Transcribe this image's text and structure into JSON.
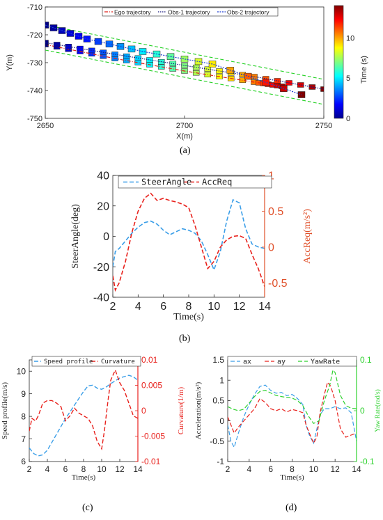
{
  "panels": {
    "a": {
      "label": "(a)"
    },
    "b": {
      "label": "(b)"
    },
    "c": {
      "label": "(c)"
    },
    "d": {
      "label": "(d)"
    }
  },
  "chart_data": [
    {
      "id": "a",
      "type": "scatter",
      "xlabel": "X(m)",
      "ylabel": "Y(m)",
      "xlim": [
        2650,
        2750
      ],
      "ylim": [
        -750,
        -710
      ],
      "xticks": [
        2650,
        2700,
        2750
      ],
      "yticks": [
        -710,
        -720,
        -730,
        -740,
        -750
      ],
      "colorbar": {
        "label": "Time (s)",
        "range": [
          0,
          14
        ],
        "ticks": [
          0,
          5,
          10
        ]
      },
      "legend": [
        "Ego trajectory",
        "Obs-1 trajectory",
        "Obs-2 trajectory"
      ],
      "lane_boundaries": [
        {
          "x": [
            2650,
            2750
          ],
          "y": [
            -716.5,
            -736
          ]
        },
        {
          "x": [
            2650,
            2750
          ],
          "y": [
            -725.5,
            -745
          ]
        }
      ],
      "series": [
        {
          "name": "Ego trajectory",
          "color": "#e0201b",
          "x": [
            2650,
            2675,
            2700,
            2725,
            2735
          ],
          "y": [
            -723.5,
            -728.5,
            -733.0,
            -737.0,
            -738.5
          ],
          "t": [
            0,
            3.5,
            7.0,
            10.5,
            13.5
          ]
        },
        {
          "name": "Obs-1 trajectory",
          "color": "#1a1a80",
          "x": [
            2650,
            2675,
            2700,
            2725,
            2750
          ],
          "y": [
            -722.8,
            -727.0,
            -731.0,
            -735.0,
            -739.5
          ],
          "t": [
            0,
            3.5,
            7,
            10.5,
            14
          ]
        },
        {
          "name": "Obs-2 trajectory",
          "color": "#1f3fd0",
          "x": [
            2650,
            2665,
            2685,
            2710,
            2742
          ],
          "y": [
            -716.5,
            -721.5,
            -726.0,
            -730.5,
            -741.5
          ],
          "t": [
            0,
            2,
            5,
            9,
            14
          ]
        }
      ]
    },
    {
      "id": "b",
      "type": "line",
      "xlabel": "Time(s)",
      "ylabel": "SteerAngle(deg)",
      "y2label": "AccReq(m/s²)",
      "xlim": [
        2,
        14
      ],
      "ylim": [
        -40,
        40
      ],
      "y2lim": [
        -0.7,
        1
      ],
      "xticks": [
        2,
        4,
        6,
        8,
        10,
        12,
        14
      ],
      "yticks": [
        40,
        20,
        0,
        -20,
        -40
      ],
      "y2ticks": [
        1,
        0.5,
        0,
        -0.5
      ],
      "legend_placement": "top",
      "series": [
        {
          "name": "SteerAngle",
          "axis": "left",
          "color": "#3a9ee8",
          "x": [
            2.0,
            2.2,
            2.5,
            3.0,
            3.5,
            4.0,
            4.5,
            5.0,
            5.5,
            6.0,
            6.5,
            7.0,
            7.5,
            8.0,
            8.5,
            9.0,
            9.5,
            9.8,
            10.0,
            10.5,
            11.0,
            11.5,
            12.0,
            12.5,
            13.0,
            13.5,
            14.0
          ],
          "y": [
            -20,
            -10,
            -8,
            -3,
            2,
            6,
            9,
            10,
            8,
            4,
            1,
            3,
            5,
            4,
            2,
            -3,
            -12,
            -18,
            -22,
            -10,
            10,
            24,
            22,
            5,
            -5,
            -7,
            -8
          ]
        },
        {
          "name": "AccReq",
          "axis": "right",
          "color": "#e8201b",
          "x": [
            2.0,
            2.2,
            2.5,
            3.0,
            3.5,
            4.0,
            4.5,
            5.0,
            5.5,
            6.0,
            6.5,
            7.0,
            7.5,
            8.0,
            8.5,
            9.0,
            9.5,
            10.0,
            10.5,
            11.0,
            11.5,
            12.0,
            12.5,
            13.0,
            13.5,
            14.0
          ],
          "y": [
            -0.4,
            -0.6,
            -0.5,
            -0.2,
            0.2,
            0.5,
            0.68,
            0.75,
            0.65,
            0.68,
            0.65,
            0.63,
            0.6,
            0.55,
            0.3,
            0.0,
            -0.3,
            -0.2,
            0.0,
            0.1,
            0.15,
            0.16,
            0.12,
            -0.1,
            -0.3,
            -0.55
          ]
        }
      ]
    },
    {
      "id": "c",
      "type": "line",
      "xlabel": "Time(s)",
      "ylabel": "Speed profile(m/s)",
      "y2label": "Curvature(1/m)",
      "xlim": [
        2,
        14
      ],
      "ylim": [
        6,
        10.5
      ],
      "y2lim": [
        -0.01,
        0.01
      ],
      "xticks": [
        2,
        4,
        6,
        8,
        10,
        12,
        14
      ],
      "yticks": [
        10,
        9,
        8,
        7,
        6
      ],
      "y2ticks": [
        0.01,
        0.005,
        0,
        -0.005,
        -0.01
      ],
      "legend_placement": "top",
      "series": [
        {
          "name": "Speed profile",
          "axis": "left",
          "color": "#3a9ee8",
          "x": [
            2,
            2.5,
            3,
            3.5,
            4,
            5,
            6,
            7,
            8,
            8.5,
            9,
            9.5,
            10,
            10.5,
            11,
            12,
            13,
            13.5,
            14
          ],
          "y": [
            6.6,
            6.35,
            6.25,
            6.3,
            6.5,
            7.2,
            7.9,
            8.5,
            9.1,
            9.35,
            9.38,
            9.25,
            9.2,
            9.3,
            9.45,
            9.7,
            9.82,
            9.75,
            9.6
          ]
        },
        {
          "name": "Curvature",
          "axis": "right",
          "color": "#e8201b",
          "x": [
            2,
            2.3,
            2.7,
            3,
            3.5,
            4,
            4.5,
            5,
            5.5,
            6,
            6.5,
            7,
            7.5,
            8,
            8.5,
            9,
            9.5,
            10,
            10.3,
            10.7,
            11,
            11.5,
            12,
            12.5,
            13,
            13.5,
            14
          ],
          "y": [
            -0.004,
            -0.0015,
            -0.002,
            -0.001,
            0.0015,
            0.002,
            0.002,
            0.0015,
            0.0008,
            -0.002,
            -0.001,
            0.0005,
            -0.0005,
            -0.001,
            -0.0015,
            -0.003,
            -0.006,
            -0.0075,
            -0.004,
            0.002,
            0.006,
            0.008,
            0.0055,
            0.004,
            0.0015,
            -0.001,
            -0.0015
          ]
        }
      ]
    },
    {
      "id": "d",
      "type": "line",
      "xlabel": "Time(s)",
      "ylabel": "Acceleration(m/s²)",
      "y2label": "Yaw Rate(rad/s)",
      "xlim": [
        2,
        14
      ],
      "ylim": [
        -1,
        1.5
      ],
      "y2lim": [
        -0.1,
        0.1
      ],
      "xticks": [
        2,
        4,
        6,
        8,
        10,
        12,
        14
      ],
      "yticks": [
        1.5,
        1,
        0.5,
        0,
        -0.5,
        -1
      ],
      "y2ticks": [
        0.1,
        0,
        -0.1
      ],
      "legend_placement": "top",
      "series": [
        {
          "name": "ax",
          "axis": "left",
          "color": "#3a9ee8",
          "x": [
            2,
            2.3,
            2.6,
            3,
            3.5,
            4,
            4.5,
            5,
            5.5,
            6,
            6.5,
            7,
            7.5,
            8,
            8.5,
            9,
            9.3,
            9.6,
            10,
            10.3,
            10.6,
            11,
            11.5,
            12,
            12.5,
            13,
            13.5,
            14
          ],
          "y": [
            -0.1,
            -0.5,
            -0.65,
            -0.3,
            0.1,
            0.4,
            0.65,
            0.85,
            0.88,
            0.75,
            0.68,
            0.7,
            0.62,
            0.65,
            0.55,
            0.4,
            -0.1,
            -0.35,
            -0.55,
            -0.2,
            0.15,
            0.3,
            0.3,
            0.35,
            0.3,
            0.32,
            0.2,
            -0.5
          ]
        },
        {
          "name": "ay",
          "axis": "left",
          "color": "#e8201b",
          "x": [
            2,
            2.3,
            2.6,
            3,
            3.5,
            4,
            4.5,
            5,
            5.5,
            6,
            6.5,
            7,
            7.5,
            8,
            8.5,
            9,
            9.3,
            9.6,
            10,
            10.3,
            10.6,
            11,
            11.3,
            11.6,
            12,
            12.5,
            13,
            13.5,
            14
          ],
          "y": [
            0.1,
            -0.1,
            -0.3,
            -0.15,
            0.0,
            0.15,
            0.3,
            0.55,
            0.45,
            0.3,
            0.25,
            0.3,
            0.22,
            0.28,
            0.25,
            0.2,
            -0.1,
            -0.3,
            -0.55,
            -0.4,
            0.2,
            0.65,
            0.95,
            0.85,
            0.5,
            -0.2,
            -0.4,
            -0.35,
            -0.3
          ]
        },
        {
          "name": "YawRate",
          "axis": "right",
          "color": "#2ed12e",
          "x": [
            2,
            2.5,
            3,
            3.5,
            4,
            4.5,
            5,
            5.5,
            6,
            6.5,
            7,
            7.5,
            8,
            8.5,
            9,
            9.5,
            10,
            10.5,
            11,
            11.5,
            11.8,
            12,
            12.5,
            13,
            13.5,
            14
          ],
          "y": [
            0.008,
            0.003,
            0.0,
            0.003,
            0.015,
            0.028,
            0.038,
            0.04,
            0.035,
            0.03,
            0.028,
            0.026,
            0.025,
            0.02,
            0.01,
            -0.01,
            -0.025,
            -0.02,
            0.02,
            0.05,
            0.08,
            0.075,
            0.03,
            0.01,
            0.005,
            0.004
          ]
        }
      ]
    }
  ]
}
